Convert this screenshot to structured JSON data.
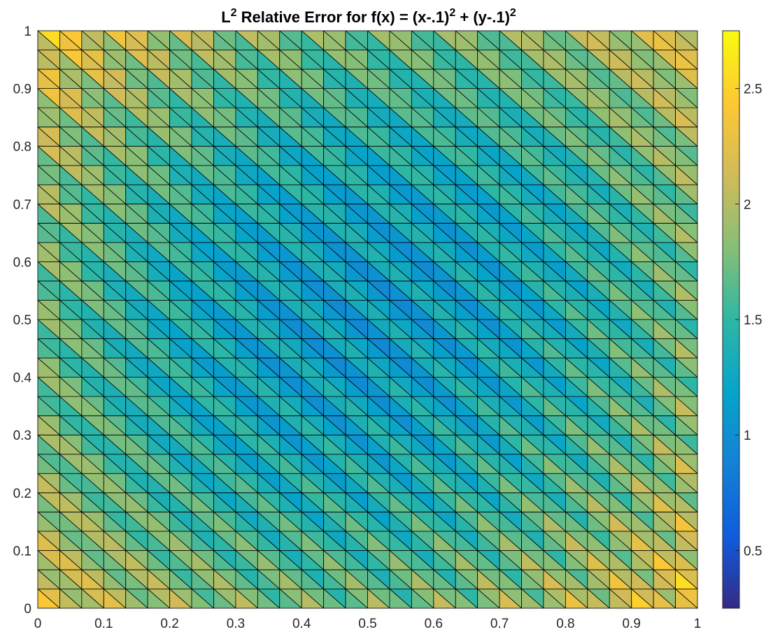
{
  "chart_data": {
    "type": "heatmap",
    "title": {
      "parts": [
        {
          "text": "L",
          "sup": false
        },
        {
          "text": "2",
          "sup": true
        },
        {
          "text": " Relative Error for f(x) = (x-.1)",
          "sup": false
        },
        {
          "text": "2",
          "sup": true
        },
        {
          "text": " + (y-.1)",
          "sup": false
        },
        {
          "text": "2",
          "sup": true
        }
      ]
    },
    "xlabel": "",
    "ylabel": "",
    "xlim": [
      0,
      1
    ],
    "ylim": [
      0,
      1
    ],
    "x_ticks": [
      {
        "value": 0,
        "label": "0"
      },
      {
        "value": 0.1,
        "label": "0.1"
      },
      {
        "value": 0.2,
        "label": "0.2"
      },
      {
        "value": 0.3,
        "label": "0.3"
      },
      {
        "value": 0.4,
        "label": "0.4"
      },
      {
        "value": 0.5,
        "label": "0.5"
      },
      {
        "value": 0.6,
        "label": "0.6"
      },
      {
        "value": 0.7,
        "label": "0.7"
      },
      {
        "value": 0.8,
        "label": "0.8"
      },
      {
        "value": 0.9,
        "label": "0.9"
      },
      {
        "value": 1,
        "label": "1"
      }
    ],
    "y_ticks": [
      {
        "value": 0,
        "label": "0"
      },
      {
        "value": 0.1,
        "label": "0.1"
      },
      {
        "value": 0.2,
        "label": "0.2"
      },
      {
        "value": 0.3,
        "label": "0.3"
      },
      {
        "value": 0.4,
        "label": "0.4"
      },
      {
        "value": 0.5,
        "label": "0.5"
      },
      {
        "value": 0.6,
        "label": "0.6"
      },
      {
        "value": 0.7,
        "label": "0.7"
      },
      {
        "value": 0.8,
        "label": "0.8"
      },
      {
        "value": 0.9,
        "label": "0.9"
      },
      {
        "value": 1,
        "label": "1"
      }
    ],
    "mesh": {
      "divisions": 30,
      "triangulation": "each square split by the diagonal from top-left to bottom-right",
      "edge_color": "#000000",
      "center": [
        0.5,
        0.5
      ],
      "min_value_est": 0.25,
      "max_value_est": 2.75
    },
    "colorbar": {
      "colormap": "parula",
      "range": [
        0.25,
        2.75
      ],
      "location": "right",
      "ticks": [
        {
          "value": 0.5,
          "label": "0.5"
        },
        {
          "value": 1,
          "label": "1"
        },
        {
          "value": 1.5,
          "label": "1.5"
        },
        {
          "value": 2,
          "label": "2"
        },
        {
          "value": 2.5,
          "label": "2.5"
        }
      ],
      "colors": [
        "#352a87",
        "#0f5cdd",
        "#1481d6",
        "#06a4ca",
        "#2eb7a4",
        "#87bf77",
        "#d1bb59",
        "#fec832",
        "#f9fb0e"
      ]
    },
    "grid": false
  }
}
